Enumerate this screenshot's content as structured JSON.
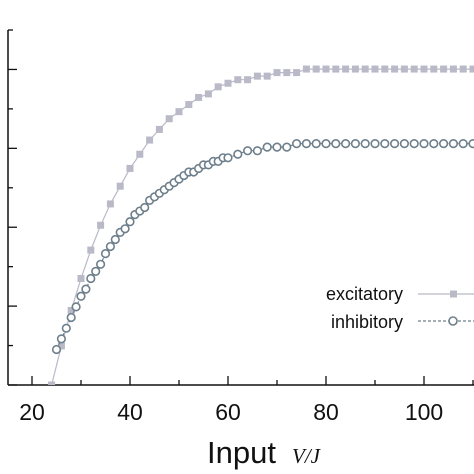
{
  "chart_data": {
    "type": "scatter",
    "xlabel": "Input",
    "xlabel_unit": "V/J",
    "xlim": [
      15,
      110
    ],
    "x_ticks": [
      20,
      40,
      60,
      80,
      100
    ],
    "ylim": [
      0,
      1.0
    ],
    "grid": false,
    "legend_position": "bottom-right",
    "series": [
      {
        "name": "excitatory",
        "marker": "filled-square",
        "line": "solid",
        "color": "#b9b9c8",
        "x": [
          24,
          26,
          28,
          30,
          32,
          34,
          36,
          38,
          40,
          42,
          44,
          46,
          48,
          50,
          52,
          54,
          56,
          58,
          60,
          62,
          64,
          66,
          68,
          70,
          72,
          74,
          76,
          78,
          80,
          82,
          84,
          86,
          88,
          90,
          92,
          94,
          96,
          98,
          100,
          102,
          104,
          106,
          108,
          110
        ],
        "y": [
          0.0,
          0.11,
          0.21,
          0.3,
          0.38,
          0.45,
          0.51,
          0.56,
          0.61,
          0.65,
          0.69,
          0.72,
          0.75,
          0.77,
          0.79,
          0.81,
          0.82,
          0.84,
          0.85,
          0.86,
          0.86,
          0.87,
          0.87,
          0.88,
          0.88,
          0.88,
          0.89,
          0.89,
          0.89,
          0.89,
          0.89,
          0.89,
          0.89,
          0.89,
          0.89,
          0.89,
          0.89,
          0.89,
          0.89,
          0.89,
          0.89,
          0.89,
          0.89,
          0.89
        ]
      },
      {
        "name": "inhibitory",
        "marker": "open-circle",
        "line": "dashed",
        "color": "#6e7f8c",
        "x": [
          25,
          26,
          27,
          28,
          29,
          30,
          31,
          32,
          33,
          34,
          35,
          36,
          37,
          38,
          39,
          40,
          41,
          42,
          43,
          44,
          45,
          46,
          47,
          48,
          49,
          50,
          51,
          52,
          53,
          54,
          55,
          56,
          57,
          58,
          59,
          60,
          62,
          64,
          66,
          68,
          70,
          72,
          74,
          76,
          78,
          80,
          82,
          84,
          86,
          88,
          90,
          92,
          94,
          96,
          98,
          100,
          102,
          104,
          106,
          108,
          110
        ],
        "y": [
          0.1,
          0.13,
          0.16,
          0.19,
          0.22,
          0.25,
          0.27,
          0.3,
          0.32,
          0.34,
          0.37,
          0.39,
          0.41,
          0.43,
          0.44,
          0.46,
          0.48,
          0.49,
          0.5,
          0.52,
          0.53,
          0.54,
          0.55,
          0.56,
          0.57,
          0.58,
          0.59,
          0.6,
          0.6,
          0.61,
          0.62,
          0.62,
          0.63,
          0.63,
          0.64,
          0.64,
          0.65,
          0.66,
          0.66,
          0.67,
          0.67,
          0.67,
          0.68,
          0.68,
          0.68,
          0.68,
          0.68,
          0.68,
          0.68,
          0.68,
          0.68,
          0.68,
          0.68,
          0.68,
          0.68,
          0.68,
          0.68,
          0.68,
          0.68,
          0.68,
          0.68
        ]
      }
    ]
  }
}
